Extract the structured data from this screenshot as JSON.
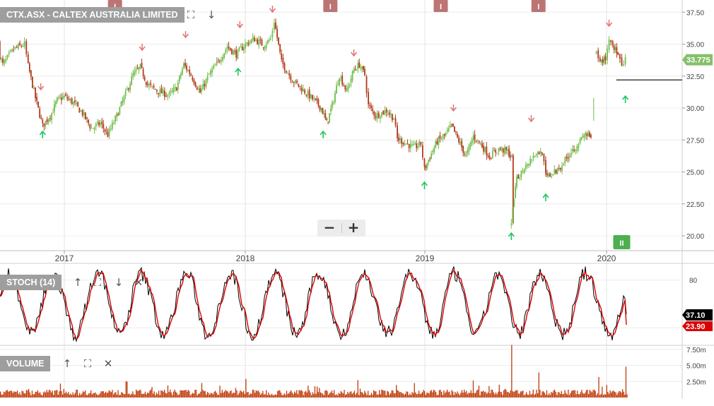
{
  "chart_data": [
    {
      "type": "candlestick",
      "title": "CTX.ASX - CALTEX AUSTRALIA LIMITED",
      "x_ticks": [
        "2017",
        "2018",
        "2019",
        "2020"
      ],
      "y_ticks": [
        "37.50",
        "35.00",
        "32.50",
        "30.00",
        "27.50",
        "25.00",
        "22.50",
        "20.00"
      ],
      "ylim": [
        18.9,
        38.0
      ],
      "last_price": "33.775",
      "reference_line": 32.2,
      "up_color": "#6fbf4a",
      "down_color": "#b03a1a",
      "grid": true,
      "price_path": [
        {
          "t": 2016.62,
          "v": 35.1
        },
        {
          "t": 2016.66,
          "v": 33.4
        },
        {
          "t": 2016.72,
          "v": 34.6
        },
        {
          "t": 2016.78,
          "v": 35.0
        },
        {
          "t": 2016.8,
          "v": 33.3
        },
        {
          "t": 2016.84,
          "v": 30.8
        },
        {
          "t": 2016.88,
          "v": 28.6
        },
        {
          "t": 2016.93,
          "v": 29.6
        },
        {
          "t": 2016.96,
          "v": 30.6
        },
        {
          "t": 2017.0,
          "v": 30.9
        },
        {
          "t": 2017.05,
          "v": 30.4
        },
        {
          "t": 2017.1,
          "v": 29.6
        },
        {
          "t": 2017.15,
          "v": 28.4
        },
        {
          "t": 2017.2,
          "v": 28.8
        },
        {
          "t": 2017.24,
          "v": 27.9
        },
        {
          "t": 2017.29,
          "v": 29.4
        },
        {
          "t": 2017.33,
          "v": 30.8
        },
        {
          "t": 2017.38,
          "v": 32.6
        },
        {
          "t": 2017.42,
          "v": 33.2
        },
        {
          "t": 2017.46,
          "v": 31.8
        },
        {
          "t": 2017.52,
          "v": 31.3
        },
        {
          "t": 2017.58,
          "v": 31.0
        },
        {
          "t": 2017.62,
          "v": 31.6
        },
        {
          "t": 2017.66,
          "v": 33.4
        },
        {
          "t": 2017.7,
          "v": 32.6
        },
        {
          "t": 2017.75,
          "v": 31.2
        },
        {
          "t": 2017.8,
          "v": 32.6
        },
        {
          "t": 2017.85,
          "v": 33.6
        },
        {
          "t": 2017.9,
          "v": 34.8
        },
        {
          "t": 2017.95,
          "v": 34.2
        },
        {
          "t": 2018.0,
          "v": 35.0
        },
        {
          "t": 2018.05,
          "v": 35.4
        },
        {
          "t": 2018.1,
          "v": 34.9
        },
        {
          "t": 2018.14,
          "v": 35.4
        },
        {
          "t": 2018.16,
          "v": 36.8
        },
        {
          "t": 2018.2,
          "v": 33.6
        },
        {
          "t": 2018.26,
          "v": 32.2
        },
        {
          "t": 2018.32,
          "v": 31.4
        },
        {
          "t": 2018.38,
          "v": 30.6
        },
        {
          "t": 2018.42,
          "v": 30.0
        },
        {
          "t": 2018.45,
          "v": 28.8
        },
        {
          "t": 2018.48,
          "v": 30.2
        },
        {
          "t": 2018.52,
          "v": 32.6
        },
        {
          "t": 2018.56,
          "v": 31.3
        },
        {
          "t": 2018.6,
          "v": 33.0
        },
        {
          "t": 2018.63,
          "v": 33.4
        },
        {
          "t": 2018.66,
          "v": 32.6
        },
        {
          "t": 2018.68,
          "v": 30.2
        },
        {
          "t": 2018.72,
          "v": 29.4
        },
        {
          "t": 2018.78,
          "v": 29.8
        },
        {
          "t": 2018.82,
          "v": 29.2
        },
        {
          "t": 2018.84,
          "v": 27.6
        },
        {
          "t": 2018.88,
          "v": 27.3
        },
        {
          "t": 2018.93,
          "v": 26.9
        },
        {
          "t": 2018.97,
          "v": 27.2
        },
        {
          "t": 2018.99,
          "v": 25.2
        },
        {
          "t": 2019.02,
          "v": 26.2
        },
        {
          "t": 2019.06,
          "v": 27.4
        },
        {
          "t": 2019.1,
          "v": 27.8
        },
        {
          "t": 2019.14,
          "v": 28.6
        },
        {
          "t": 2019.18,
          "v": 27.4
        },
        {
          "t": 2019.22,
          "v": 26.2
        },
        {
          "t": 2019.26,
          "v": 27.8
        },
        {
          "t": 2019.3,
          "v": 27.2
        },
        {
          "t": 2019.35,
          "v": 26.2
        },
        {
          "t": 2019.4,
          "v": 26.8
        },
        {
          "t": 2019.45,
          "v": 26.6
        },
        {
          "t": 2019.48,
          "v": 25.9
        },
        {
          "t": 2019.47,
          "v": 21.2
        },
        {
          "t": 2019.5,
          "v": 24.4
        },
        {
          "t": 2019.55,
          "v": 25.6
        },
        {
          "t": 2019.6,
          "v": 26.4
        },
        {
          "t": 2019.64,
          "v": 26.6
        },
        {
          "t": 2019.66,
          "v": 24.6
        },
        {
          "t": 2019.7,
          "v": 24.8
        },
        {
          "t": 2019.75,
          "v": 25.6
        },
        {
          "t": 2019.8,
          "v": 26.6
        },
        {
          "t": 2019.85,
          "v": 27.4
        },
        {
          "t": 2019.88,
          "v": 28.0
        },
        {
          "t": 2019.91,
          "v": 27.6
        }
      ],
      "price_path_2": [
        {
          "t": 2019.94,
          "v": 34.2
        },
        {
          "t": 2019.96,
          "v": 33.6
        },
        {
          "t": 2019.99,
          "v": 33.9
        },
        {
          "t": 2020.01,
          "v": 35.4
        },
        {
          "t": 2020.03,
          "v": 35.0
        },
        {
          "t": 2020.06,
          "v": 34.1
        },
        {
          "t": 2020.08,
          "v": 33.1
        },
        {
          "t": 2020.1,
          "v": 33.775
        }
      ],
      "signals_down": [
        2016.87,
        2017.43,
        2017.67,
        2017.97,
        2018.15,
        2018.6,
        2019.15,
        2019.58,
        2020.01
      ],
      "signals_up": [
        2016.88,
        2018.43,
        2018.99,
        2019.47,
        2019.66,
        2017.96,
        2020.1
      ],
      "event_markers": [
        2017.28,
        2018.47,
        2019.08,
        2019.62
      ],
      "event_marker_label": "I",
      "event_marker_current": 2020.08
    },
    {
      "type": "line",
      "title": "STOCH (14)",
      "y_ticks": [
        "80"
      ],
      "ylim": [
        0,
        100
      ],
      "series": [
        {
          "values": "oscillating",
          "color": "#000000",
          "last": "37.10"
        },
        {
          "values": "oscillating",
          "color": "#dd0000",
          "last": "23.90"
        }
      ]
    },
    {
      "type": "bar",
      "title": "VOLUME",
      "y_ticks": [
        "7.50m",
        "5.00m",
        "2.50m"
      ],
      "ylim": [
        0,
        8.2
      ],
      "unit": "m",
      "color": "#c03a08",
      "spikes": [
        {
          "t": 2017.4,
          "v": 2.8
        },
        {
          "t": 2018.0,
          "v": 2.9
        },
        {
          "t": 2018.36,
          "v": 4.2
        },
        {
          "t": 2018.62,
          "v": 2.7
        },
        {
          "t": 2019.15,
          "v": 6.3
        },
        {
          "t": 2019.47,
          "v": 8.2
        },
        {
          "t": 2019.46,
          "v": 5.2
        },
        {
          "t": 2019.62,
          "v": 3.9
        },
        {
          "t": 2019.93,
          "v": 6.6
        },
        {
          "t": 2019.95,
          "v": 3.2
        },
        {
          "t": 2020.1,
          "v": 4.8
        }
      ]
    }
  ],
  "icons": {
    "expand": "expand-icon",
    "down_arrow": "arrow-down-icon",
    "up_arrow": "arrow-up-icon",
    "close": "close-icon"
  },
  "toolbar": {
    "zoom_out_label": "−",
    "zoom_in_label": "+"
  }
}
